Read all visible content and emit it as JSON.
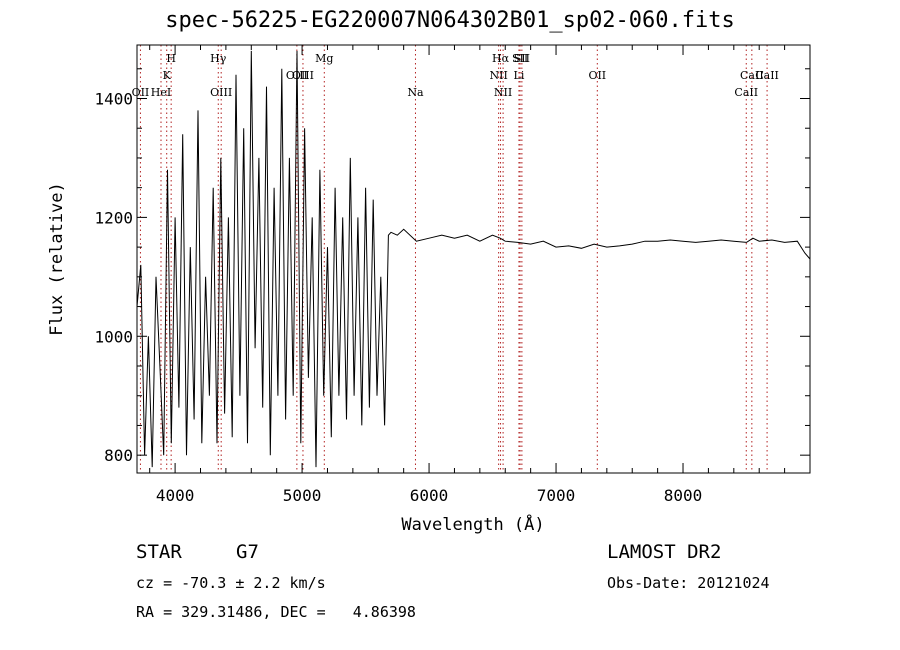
{
  "chart_data": {
    "type": "line",
    "title": "spec-56225-EG220007N064302B01_sp02-060.fits",
    "xlabel": "Wavelength (Å)",
    "ylabel": "Flux (relative)",
    "xlim": [
      3700,
      9000
    ],
    "ylim": [
      770,
      1490
    ],
    "xticks": [
      4000,
      5000,
      6000,
      7000,
      8000
    ],
    "yticks": [
      800,
      1000,
      1200,
      1400
    ],
    "grid": false,
    "series": [
      {
        "x": [
          3700,
          3730,
          3760,
          3790,
          3820,
          3850,
          3880,
          3910,
          3940,
          3970,
          4000,
          4030,
          4060,
          4090,
          4120,
          4150,
          4180,
          4210,
          4240,
          4270,
          4300,
          4330,
          4360,
          4390,
          4420,
          4450,
          4480,
          4510,
          4540,
          4570,
          4600,
          4630,
          4660,
          4690,
          4720,
          4750,
          4780,
          4810,
          4840,
          4870,
          4900,
          4930,
          4960,
          4990,
          5020,
          5050,
          5080,
          5110,
          5140,
          5170,
          5200,
          5230,
          5260,
          5290,
          5320,
          5350,
          5380,
          5410,
          5440,
          5470,
          5500,
          5530,
          5560,
          5590,
          5620,
          5650,
          5680,
          5700,
          5750,
          5800,
          5900,
          6000,
          6100,
          6200,
          6300,
          6400,
          6500,
          6560,
          6600,
          6700,
          6800,
          6900,
          7000,
          7100,
          7200,
          7300,
          7400,
          7500,
          7600,
          7700,
          7800,
          7900,
          8000,
          8100,
          8200,
          8300,
          8400,
          8500,
          8550,
          8600,
          8700,
          8800,
          8900,
          8960,
          9000
        ],
        "y": [
          1050,
          1120,
          800,
          1000,
          780,
          1100,
          950,
          800,
          1280,
          820,
          1200,
          880,
          1340,
          800,
          1150,
          860,
          1380,
          820,
          1100,
          900,
          1250,
          820,
          1300,
          870,
          1200,
          830,
          1440,
          900,
          1350,
          820,
          1480,
          980,
          1300,
          880,
          1420,
          800,
          1250,
          900,
          1450,
          860,
          1300,
          900,
          1480,
          820,
          1350,
          930,
          1200,
          780,
          1280,
          900,
          1150,
          830,
          1250,
          900,
          1200,
          860,
          1300,
          900,
          1200,
          850,
          1250,
          880,
          1230,
          900,
          1100,
          850,
          1170,
          1175,
          1170,
          1180,
          1160,
          1165,
          1170,
          1165,
          1170,
          1160,
          1170,
          1165,
          1160,
          1158,
          1155,
          1160,
          1150,
          1152,
          1148,
          1155,
          1150,
          1152,
          1155,
          1160,
          1160,
          1162,
          1160,
          1158,
          1160,
          1162,
          1160,
          1158,
          1165,
          1160,
          1162,
          1158,
          1160,
          1140,
          1130
        ]
      }
    ],
    "lines": [
      {
        "label": "Hγ",
        "x": 4340,
        "row": 1,
        "color": "#b22222"
      },
      {
        "label": "H",
        "x": 3969,
        "row": 1,
        "color": "#b22222"
      },
      {
        "label": "K",
        "x": 3934,
        "row": 2,
        "color": "#b22222"
      },
      {
        "label": "OII",
        "x": 3727,
        "row": 3,
        "color": "#b22222"
      },
      {
        "label": "HeI",
        "x": 3889,
        "row": 3,
        "color": "#b22222"
      },
      {
        "label": "OIII",
        "x": 4363,
        "row": 3,
        "color": "#b22222"
      },
      {
        "label": "Mg",
        "x": 5175,
        "row": 1,
        "color": "#b22222"
      },
      {
        "label": "OIII",
        "x": 4959,
        "row": 2,
        "color": "#b22222"
      },
      {
        "label": "OIII",
        "x": 5007,
        "row": 2,
        "color": "#b22222"
      },
      {
        "label": "Na",
        "x": 5893,
        "row": 3,
        "color": "#b22222"
      },
      {
        "label": "Hα",
        "x": 6563,
        "row": 1,
        "color": "#b22222"
      },
      {
        "label": "NII",
        "x": 6548,
        "row": 2,
        "color": "#b22222"
      },
      {
        "label": "Li",
        "x": 6708,
        "row": 2,
        "color": "#b22222"
      },
      {
        "label": "NII",
        "x": 6583,
        "row": 3,
        "color": "#b22222"
      },
      {
        "label": "OII",
        "x": 7325,
        "row": 2,
        "color": "#b22222"
      },
      {
        "label": "SII",
        "x": 6717,
        "row": 1,
        "color": "#b22222"
      },
      {
        "label": "SII",
        "x": 6731,
        "row": 1,
        "color": "#b22222"
      },
      {
        "label": "CaII",
        "x": 8542,
        "row": 2,
        "color": "#b22222"
      },
      {
        "label": "CaII",
        "x": 8498,
        "row": 3,
        "color": "#b22222"
      },
      {
        "label": "CaII",
        "x": 8662,
        "row": 2,
        "color": "#b22222"
      }
    ]
  },
  "info": {
    "class": "STAR",
    "subclass": "G7",
    "survey": "LAMOST DR2",
    "redshift": "cz = -70.3 ± 2.2 km/s",
    "obsdate": "Obs-Date: 20121024",
    "coords": "RA = 329.31486, DEC =   4.86398"
  }
}
